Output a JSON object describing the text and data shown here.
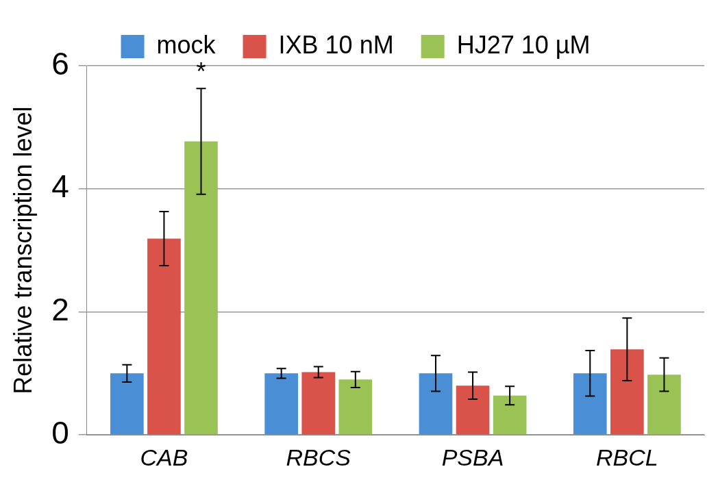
{
  "chart_data": {
    "type": "bar",
    "ylabel": "Relative transcription level",
    "categories": [
      "CAB",
      "RBCS",
      "PSBA",
      "RBCL"
    ],
    "series": [
      {
        "name": "mock",
        "color": "#4a8fd6",
        "values": [
          1.0,
          1.0,
          1.0,
          1.0
        ],
        "errors": [
          0.14,
          0.08,
          0.29,
          0.37
        ]
      },
      {
        "name": "IXB 10 nM",
        "color": "#d9534a",
        "values": [
          3.19,
          1.02,
          0.8,
          1.39
        ],
        "errors": [
          0.44,
          0.09,
          0.22,
          0.51
        ]
      },
      {
        "name": "HJ27 10 µM",
        "color": "#9ac254",
        "values": [
          4.77,
          0.9,
          0.64,
          0.98
        ],
        "errors": [
          0.86,
          0.13,
          0.15,
          0.27
        ]
      }
    ],
    "ylim": [
      0,
      6
    ],
    "yticks": [
      0,
      2,
      4,
      6
    ],
    "grid": "y",
    "legend": "top",
    "annotations": [
      "*"
    ]
  }
}
